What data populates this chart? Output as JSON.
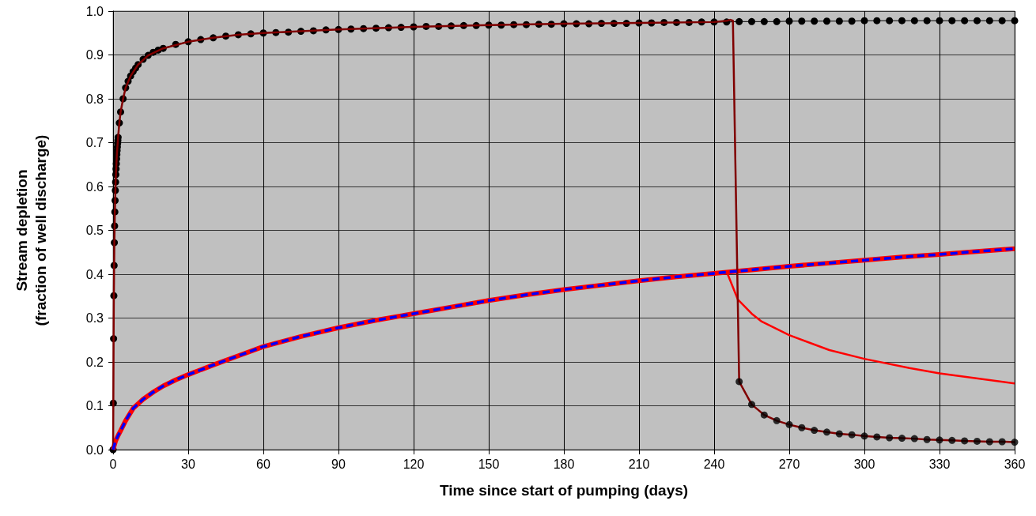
{
  "chart_data": {
    "type": "line",
    "xlabel": "Time since start of pumping (days)",
    "ylabel": "Stream depletion\n(fraction of well discharge)",
    "xlim": [
      0,
      360
    ],
    "xticks": [
      0,
      30,
      60,
      90,
      120,
      150,
      180,
      210,
      240,
      270,
      300,
      330,
      360
    ],
    "ylim": [
      0,
      1
    ],
    "yticks": [
      {
        "value": 0,
        "label": "0.0"
      },
      0.1,
      0.2,
      0.3,
      0.4,
      0.5,
      0.6,
      0.7,
      0.8,
      0.9,
      {
        "value": 1,
        "label": "1.0"
      }
    ],
    "grid": true,
    "series": [
      {
        "color": "#ff0000",
        "marker": "none",
        "line_style": "solid",
        "x": [
          0,
          0.5,
          1,
          2,
          3,
          5,
          8,
          12,
          16,
          20,
          25,
          30,
          40,
          50,
          60,
          75,
          90,
          105,
          120,
          135,
          150,
          165,
          180,
          195,
          210,
          225,
          240,
          255,
          270,
          285,
          300,
          315,
          330,
          345,
          360
        ],
        "values": [
          0,
          0.01,
          0.02,
          0.032,
          0.043,
          0.066,
          0.094,
          0.115,
          0.131,
          0.145,
          0.159,
          0.171,
          0.193,
          0.214,
          0.235,
          0.258,
          0.278,
          0.295,
          0.31,
          0.325,
          0.34,
          0.353,
          0.365,
          0.375,
          0.385,
          0.394,
          0.402,
          0.41,
          0.418,
          0.425,
          0.432,
          0.439,
          0.445,
          0.452,
          0.458
        ]
      },
      {
        "color": "#0000ff",
        "marker": "none",
        "line_style": "dashed",
        "x": [
          0,
          0.5,
          1,
          2,
          3,
          5,
          8,
          12,
          16,
          20,
          25,
          30,
          40,
          50,
          60,
          75,
          90,
          105,
          120,
          135,
          150,
          165,
          180,
          195,
          210,
          225,
          240,
          255,
          270,
          285,
          300,
          315,
          330,
          345,
          360
        ],
        "values": [
          0,
          0.01,
          0.02,
          0.032,
          0.043,
          0.066,
          0.094,
          0.115,
          0.131,
          0.145,
          0.159,
          0.171,
          0.193,
          0.214,
          0.235,
          0.258,
          0.278,
          0.295,
          0.31,
          0.325,
          0.34,
          0.353,
          0.365,
          0.375,
          0.385,
          0.394,
          0.402,
          0.41,
          0.418,
          0.425,
          0.432,
          0.439,
          0.445,
          0.452,
          0.458
        ]
      },
      {
        "color": "#ff0000",
        "marker": "none",
        "line_style": "solid",
        "x": [
          0,
          0.5,
          1,
          2,
          3,
          5,
          8,
          12,
          16,
          20,
          25,
          30,
          40,
          50,
          60,
          75,
          90,
          105,
          120,
          135,
          150,
          165,
          180,
          195,
          210,
          225,
          240,
          245,
          249.5,
          255,
          259,
          270,
          286,
          300,
          318,
          330,
          360
        ],
        "values": [
          0,
          0.01,
          0.02,
          0.032,
          0.043,
          0.066,
          0.094,
          0.115,
          0.131,
          0.145,
          0.159,
          0.171,
          0.193,
          0.214,
          0.235,
          0.258,
          0.278,
          0.295,
          0.31,
          0.325,
          0.34,
          0.353,
          0.365,
          0.375,
          0.385,
          0.394,
          0.402,
          0.406,
          0.342,
          0.31,
          0.292,
          0.261,
          0.227,
          0.207,
          0.186,
          0.174,
          0.151
        ]
      },
      {
        "color": "#000000",
        "marker": "circle",
        "line_style": "solid",
        "x": [
          0,
          0.1,
          0.2,
          0.3,
          0.4,
          0.5,
          0.6,
          0.7,
          0.8,
          0.9,
          1,
          1.1,
          1.2,
          1.3,
          1.4,
          1.5,
          1.6,
          1.7,
          1.8,
          1.9,
          2,
          2.5,
          3,
          4,
          5,
          6,
          7,
          8,
          9,
          10,
          12,
          14,
          16,
          18,
          20,
          25,
          30,
          35,
          40,
          45,
          50,
          55,
          60,
          65,
          70,
          75,
          80,
          85,
          90,
          95,
          100,
          105,
          110,
          115,
          120,
          125,
          130,
          135,
          140,
          145,
          150,
          155,
          160,
          165,
          170,
          175,
          180,
          185,
          190,
          195,
          200,
          205,
          210,
          215,
          220,
          225,
          230,
          235,
          240,
          245,
          250,
          255,
          260,
          265,
          270,
          275,
          280,
          285,
          290,
          295,
          300,
          305,
          310,
          315,
          320,
          325,
          330,
          335,
          340,
          345,
          350,
          355,
          360
        ],
        "values": [
          0,
          0.106,
          0.253,
          0.351,
          0.42,
          0.472,
          0.51,
          0.542,
          0.568,
          0.591,
          0.61,
          0.627,
          0.64,
          0.652,
          0.663,
          0.673,
          0.682,
          0.69,
          0.698,
          0.705,
          0.712,
          0.745,
          0.77,
          0.8,
          0.825,
          0.84,
          0.852,
          0.862,
          0.87,
          0.878,
          0.89,
          0.899,
          0.906,
          0.911,
          0.915,
          0.924,
          0.93,
          0.935,
          0.939,
          0.943,
          0.946,
          0.948,
          0.95,
          0.951,
          0.952,
          0.954,
          0.955,
          0.957,
          0.958,
          0.959,
          0.96,
          0.961,
          0.962,
          0.963,
          0.964,
          0.965,
          0.965,
          0.966,
          0.967,
          0.967,
          0.968,
          0.968,
          0.969,
          0.969,
          0.97,
          0.97,
          0.971,
          0.971,
          0.971,
          0.972,
          0.972,
          0.972,
          0.973,
          0.973,
          0.974,
          0.974,
          0.974,
          0.975,
          0.975,
          0.975,
          0.976,
          0.976,
          0.976,
          0.976,
          0.977,
          0.977,
          0.977,
          0.977,
          0.977,
          0.977,
          0.978,
          0.978,
          0.978,
          0.978,
          0.978,
          0.978,
          0.978,
          0.978,
          0.978,
          0.978,
          0.978,
          0.978,
          0.978
        ]
      },
      {
        "color": "#800000",
        "marker": "none",
        "line_style": "solid",
        "x": [
          0,
          0.1,
          0.2,
          0.3,
          0.5,
          0.7,
          1,
          1.5,
          2,
          2.5,
          3,
          4,
          5,
          7,
          10,
          14,
          20,
          30,
          40,
          50,
          60,
          90,
          120,
          150,
          180,
          210,
          240,
          245,
          246.5,
          247.5,
          250,
          255,
          260,
          265,
          270,
          275,
          280,
          285,
          290,
          295,
          300,
          305,
          310,
          315,
          320,
          325,
          330,
          335,
          340,
          345,
          350,
          355,
          360
        ],
        "values": [
          0,
          0.106,
          0.253,
          0.351,
          0.472,
          0.542,
          0.61,
          0.673,
          0.712,
          0.745,
          0.77,
          0.8,
          0.825,
          0.852,
          0.878,
          0.899,
          0.915,
          0.93,
          0.939,
          0.946,
          0.95,
          0.958,
          0.964,
          0.968,
          0.971,
          0.973,
          0.975,
          0.978,
          0.98,
          0.978,
          0.155,
          0.103,
          0.079,
          0.066,
          0.057,
          0.05,
          0.044,
          0.04,
          0.036,
          0.034,
          0.031,
          0.029,
          0.027,
          0.026,
          0.025,
          0.023,
          0.022,
          0.021,
          0.02,
          0.019,
          0.018,
          0.018,
          0.017
        ]
      },
      {
        "type": "scatter",
        "color": "#000000",
        "marker": "circle",
        "x": [
          250,
          255,
          260,
          265,
          270,
          275,
          280,
          285,
          290,
          295,
          300,
          305,
          310,
          315,
          320,
          325,
          330,
          335,
          340,
          345,
          350,
          355,
          360
        ],
        "values": [
          0.155,
          0.103,
          0.079,
          0.066,
          0.057,
          0.05,
          0.044,
          0.04,
          0.036,
          0.034,
          0.031,
          0.029,
          0.027,
          0.026,
          0.025,
          0.023,
          0.022,
          0.021,
          0.02,
          0.019,
          0.018,
          0.018,
          0.017
        ]
      }
    ]
  }
}
